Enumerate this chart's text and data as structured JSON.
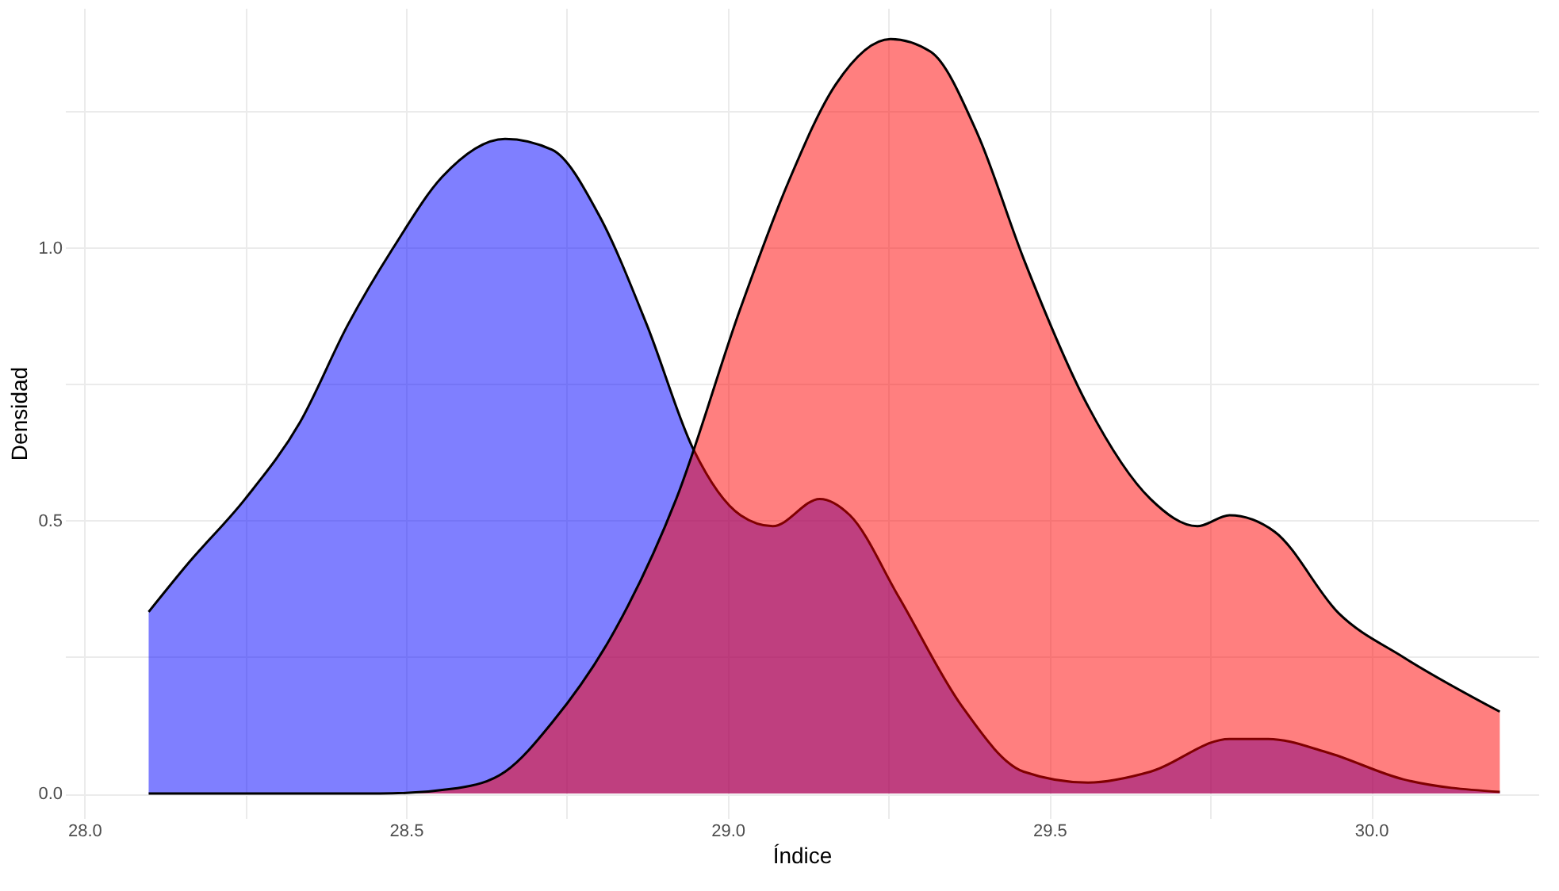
{
  "chart_data": {
    "type": "area",
    "xlabel": "Índice",
    "ylabel": "Densidad",
    "xlim": [
      27.97,
      30.26
    ],
    "ylim": [
      -0.045,
      1.44
    ],
    "xticks": [
      {
        "value": 28.0,
        "label": "28.0"
      },
      {
        "value": 28.25,
        "label": null
      },
      {
        "value": 28.5,
        "label": "28.5"
      },
      {
        "value": 28.75,
        "label": null
      },
      {
        "value": 29.0,
        "label": "29.0"
      },
      {
        "value": 29.25,
        "label": null
      },
      {
        "value": 29.5,
        "label": "29.5"
      },
      {
        "value": 29.75,
        "label": null
      },
      {
        "value": 30.0,
        "label": "30.0"
      }
    ],
    "yticks": [
      {
        "value": 0,
        "label": "0.0"
      },
      {
        "value": 0.25,
        "label": null
      },
      {
        "value": 0.5,
        "label": "0.5"
      },
      {
        "value": 0.75,
        "label": null
      },
      {
        "value": 1.0,
        "label": "1.0"
      },
      {
        "value": 1.25,
        "label": null
      }
    ],
    "grid": true,
    "series": [
      {
        "color": "#0000ff",
        "x": [
          28.1,
          28.16,
          28.25,
          28.335,
          28.41,
          28.48,
          28.556,
          28.654,
          28.727,
          28.8,
          28.874,
          28.947,
          29.02,
          29.07,
          29.143,
          29.19,
          29.266,
          29.364,
          29.46,
          29.56,
          29.657,
          29.78,
          29.84,
          29.93,
          30.05,
          30.2
        ],
        "values": [
          0.333,
          0.42,
          0.54,
          0.68,
          0.86,
          1.0,
          1.13,
          1.2,
          1.18,
          1.06,
          0.86,
          0.63,
          0.51,
          0.49,
          0.54,
          0.51,
          0.36,
          0.16,
          0.04,
          0.02,
          0.04,
          0.1,
          0.1,
          0.076,
          0.026,
          0.003
        ]
      },
      {
        "color": "#ff0000",
        "x": [
          28.1,
          28.46,
          28.58,
          28.654,
          28.727,
          28.825,
          28.92,
          29.02,
          29.094,
          29.168,
          29.253,
          29.315,
          29.388,
          29.46,
          29.56,
          29.657,
          29.73,
          29.78,
          29.85,
          29.95,
          30.05,
          30.2
        ],
        "values": [
          0,
          0,
          0.01,
          0.04,
          0.13,
          0.3,
          0.54,
          0.89,
          1.12,
          1.3,
          1.383,
          1.36,
          1.21,
          0.98,
          0.71,
          0.54,
          0.49,
          0.51,
          0.48,
          0.33,
          0.25,
          0.15
        ]
      }
    ]
  }
}
